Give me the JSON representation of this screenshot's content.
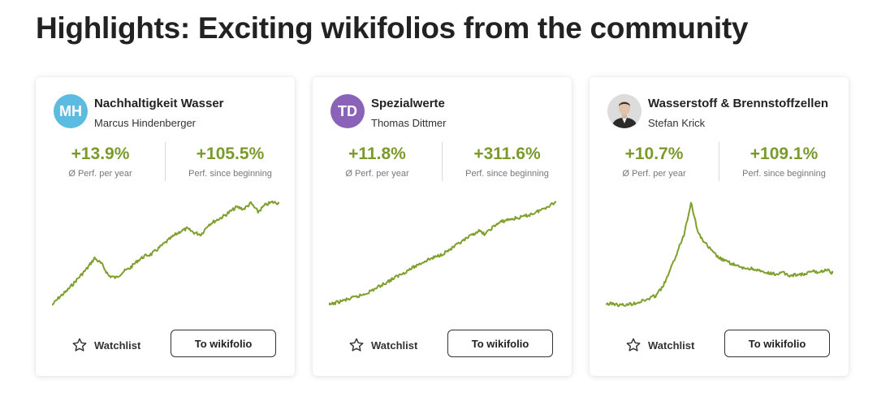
{
  "page": {
    "title": "Highlights: Exciting wikifolios from the community"
  },
  "labels": {
    "per_year": "Ø Perf. per year",
    "since_beginning": "Perf. since beginning",
    "watchlist": "Watchlist",
    "to_wikifolio": "To wikifolio"
  },
  "colors": {
    "positive": "#7b9a2c",
    "line": "#7f9f2e"
  },
  "cards": [
    {
      "name": "Nachhaltigkeit Wasser",
      "author": "Marcus Hindenberger",
      "avatar": {
        "type": "initials",
        "initials": "MH",
        "color": "#5bbbe0"
      },
      "perf_per_year": "+13.9%",
      "perf_since_beginning": "+105.5%",
      "chart": {
        "type": "line",
        "y": [
          0,
          8,
          14,
          22,
          30,
          38,
          48,
          42,
          30,
          28,
          34,
          38,
          45,
          50,
          52,
          58,
          64,
          70,
          75,
          78,
          74,
          72,
          82,
          86,
          90,
          95,
          100,
          98,
          104,
          95,
          102,
          105,
          104
        ]
      }
    },
    {
      "name": "Spezialwerte",
      "author": "Thomas Dittmer",
      "avatar": {
        "type": "initials",
        "initials": "TD",
        "color": "#8a63b8"
      },
      "perf_per_year": "+11.8%",
      "perf_since_beginning": "+311.6%",
      "chart": {
        "type": "line",
        "y": [
          0,
          8,
          14,
          20,
          26,
          34,
          44,
          56,
          68,
          80,
          92,
          104,
          116,
          128,
          138,
          146,
          156,
          168,
          182,
          196,
          210,
          225,
          215,
          235,
          250,
          258,
          262,
          266,
          272,
          280,
          290,
          302,
          312
        ]
      }
    },
    {
      "name": "Wasserstoff & Brennstoffzellen",
      "author": "Stefan Krick",
      "avatar": {
        "type": "photo",
        "icon": "person-photo-icon"
      },
      "perf_per_year": "+10.7%",
      "perf_since_beginning": "+109.1%",
      "chart": {
        "type": "line",
        "y": [
          0,
          2,
          -4,
          -2,
          3,
          10,
          18,
          30,
          60,
          115,
          180,
          245,
          360,
          250,
          215,
          185,
          162,
          150,
          140,
          128,
          126,
          124,
          112,
          108,
          106,
          110,
          100,
          106,
          104,
          116,
          112,
          122,
          109
        ]
      }
    }
  ]
}
